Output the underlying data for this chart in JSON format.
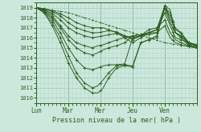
{
  "xlabel": "Pression niveau de la mer( hPa )",
  "bg_color": "#cce8dc",
  "grid_major_color": "#a8cfc0",
  "grid_minor_color": "#b8d8cc",
  "line_color": "#2d6020",
  "ylim": [
    1009.5,
    1019.5
  ],
  "yticks": [
    1010,
    1011,
    1012,
    1013,
    1014,
    1015,
    1016,
    1017,
    1018,
    1019
  ],
  "day_labels": [
    "Lun",
    "Mar",
    "Mer",
    "Jeu",
    "Ven"
  ],
  "day_positions": [
    0,
    24,
    48,
    72,
    96
  ],
  "total_hours": 120,
  "lines": [
    [
      [
        0,
        1019.0
      ],
      [
        6,
        1018.5
      ],
      [
        12,
        1017.2
      ],
      [
        18,
        1015.5
      ],
      [
        24,
        1013.5
      ],
      [
        30,
        1012.0
      ],
      [
        36,
        1011.0
      ],
      [
        42,
        1010.5
      ],
      [
        46,
        1010.5
      ],
      [
        50,
        1011.0
      ],
      [
        54,
        1012.0
      ],
      [
        60,
        1013.0
      ],
      [
        66,
        1013.2
      ],
      [
        72,
        1013.1
      ],
      [
        78,
        1015.5
      ],
      [
        84,
        1015.8
      ],
      [
        90,
        1016.0
      ],
      [
        96,
        1019.2
      ],
      [
        100,
        1018.8
      ],
      [
        104,
        1016.5
      ],
      [
        108,
        1016.0
      ],
      [
        114,
        1015.2
      ],
      [
        120,
        1015.0
      ]
    ],
    [
      [
        0,
        1019.0
      ],
      [
        6,
        1018.5
      ],
      [
        12,
        1017.5
      ],
      [
        18,
        1016.0
      ],
      [
        24,
        1014.2
      ],
      [
        30,
        1012.5
      ],
      [
        36,
        1011.5
      ],
      [
        42,
        1011.0
      ],
      [
        46,
        1011.2
      ],
      [
        50,
        1011.8
      ],
      [
        54,
        1012.5
      ],
      [
        60,
        1013.2
      ],
      [
        66,
        1013.3
      ],
      [
        72,
        1013.2
      ],
      [
        78,
        1015.5
      ],
      [
        84,
        1015.8
      ],
      [
        90,
        1016.2
      ],
      [
        96,
        1019.0
      ],
      [
        100,
        1018.5
      ],
      [
        104,
        1016.5
      ],
      [
        108,
        1016.2
      ],
      [
        114,
        1015.3
      ],
      [
        120,
        1015.1
      ]
    ],
    [
      [
        0,
        1019.0
      ],
      [
        6,
        1018.6
      ],
      [
        12,
        1017.8
      ],
      [
        18,
        1016.5
      ],
      [
        24,
        1015.0
      ],
      [
        30,
        1013.8
      ],
      [
        36,
        1013.0
      ],
      [
        42,
        1012.8
      ],
      [
        46,
        1013.0
      ],
      [
        50,
        1013.2
      ],
      [
        54,
        1013.3
      ],
      [
        60,
        1013.3
      ],
      [
        66,
        1013.4
      ],
      [
        72,
        1016.0
      ],
      [
        78,
        1016.2
      ],
      [
        84,
        1016.3
      ],
      [
        90,
        1016.5
      ],
      [
        96,
        1019.0
      ],
      [
        100,
        1018.2
      ],
      [
        104,
        1016.8
      ],
      [
        108,
        1016.5
      ],
      [
        114,
        1015.4
      ],
      [
        120,
        1015.2
      ]
    ],
    [
      [
        0,
        1019.0
      ],
      [
        6,
        1018.7
      ],
      [
        12,
        1018.0
      ],
      [
        18,
        1017.0
      ],
      [
        24,
        1015.8
      ],
      [
        30,
        1015.0
      ],
      [
        36,
        1014.5
      ],
      [
        42,
        1014.3
      ],
      [
        46,
        1014.5
      ],
      [
        50,
        1014.8
      ],
      [
        54,
        1015.0
      ],
      [
        60,
        1015.2
      ],
      [
        66,
        1015.5
      ],
      [
        72,
        1016.2
      ],
      [
        78,
        1016.3
      ],
      [
        84,
        1016.5
      ],
      [
        90,
        1016.8
      ],
      [
        96,
        1019.2
      ],
      [
        100,
        1017.8
      ],
      [
        104,
        1017.0
      ],
      [
        108,
        1016.5
      ],
      [
        114,
        1015.5
      ],
      [
        120,
        1015.2
      ]
    ],
    [
      [
        0,
        1019.0
      ],
      [
        6,
        1018.8
      ],
      [
        12,
        1018.2
      ],
      [
        18,
        1017.2
      ],
      [
        24,
        1016.2
      ],
      [
        30,
        1015.5
      ],
      [
        36,
        1015.2
      ],
      [
        42,
        1015.0
      ],
      [
        46,
        1015.2
      ],
      [
        50,
        1015.3
      ],
      [
        54,
        1015.5
      ],
      [
        60,
        1015.8
      ],
      [
        66,
        1016.0
      ],
      [
        72,
        1016.2
      ],
      [
        78,
        1016.3
      ],
      [
        84,
        1016.5
      ],
      [
        90,
        1016.8
      ],
      [
        96,
        1019.0
      ],
      [
        100,
        1017.5
      ],
      [
        104,
        1016.5
      ],
      [
        108,
        1016.2
      ],
      [
        114,
        1015.5
      ],
      [
        120,
        1015.3
      ]
    ],
    [
      [
        0,
        1019.0
      ],
      [
        6,
        1018.8
      ],
      [
        12,
        1018.4
      ],
      [
        18,
        1017.8
      ],
      [
        24,
        1017.0
      ],
      [
        30,
        1016.5
      ],
      [
        36,
        1016.2
      ],
      [
        42,
        1016.0
      ],
      [
        46,
        1016.1
      ],
      [
        50,
        1016.2
      ],
      [
        54,
        1016.3
      ],
      [
        60,
        1016.4
      ],
      [
        66,
        1016.2
      ],
      [
        72,
        1016.0
      ],
      [
        78,
        1016.2
      ],
      [
        84,
        1016.5
      ],
      [
        90,
        1016.8
      ],
      [
        96,
        1018.5
      ],
      [
        100,
        1017.2
      ],
      [
        104,
        1016.0
      ],
      [
        108,
        1015.8
      ],
      [
        114,
        1015.5
      ],
      [
        120,
        1015.3
      ]
    ],
    [
      [
        0,
        1019.0
      ],
      [
        6,
        1018.9
      ],
      [
        12,
        1018.6
      ],
      [
        18,
        1018.2
      ],
      [
        24,
        1017.5
      ],
      [
        30,
        1017.0
      ],
      [
        36,
        1016.7
      ],
      [
        42,
        1016.5
      ],
      [
        46,
        1016.5
      ],
      [
        50,
        1016.6
      ],
      [
        54,
        1016.7
      ],
      [
        60,
        1016.6
      ],
      [
        66,
        1016.2
      ],
      [
        72,
        1015.8
      ],
      [
        78,
        1016.2
      ],
      [
        84,
        1016.8
      ],
      [
        90,
        1017.0
      ],
      [
        96,
        1017.8
      ],
      [
        100,
        1016.5
      ],
      [
        104,
        1015.8
      ],
      [
        108,
        1015.5
      ],
      [
        114,
        1015.2
      ],
      [
        120,
        1015.0
      ]
    ],
    [
      [
        0,
        1019.0
      ],
      [
        6,
        1018.9
      ],
      [
        12,
        1018.7
      ],
      [
        18,
        1018.4
      ],
      [
        24,
        1018.0
      ],
      [
        30,
        1017.5
      ],
      [
        36,
        1017.2
      ],
      [
        42,
        1017.0
      ],
      [
        46,
        1017.0
      ],
      [
        50,
        1017.0
      ],
      [
        54,
        1016.8
      ],
      [
        60,
        1016.5
      ],
      [
        66,
        1016.0
      ],
      [
        72,
        1015.5
      ],
      [
        78,
        1016.0
      ],
      [
        84,
        1016.5
      ],
      [
        90,
        1016.5
      ],
      [
        96,
        1017.2
      ],
      [
        100,
        1016.0
      ],
      [
        104,
        1015.5
      ],
      [
        108,
        1015.3
      ],
      [
        114,
        1015.1
      ],
      [
        120,
        1015.0
      ]
    ],
    [
      [
        0,
        1019.0
      ],
      [
        24,
        1018.5
      ],
      [
        48,
        1017.5
      ],
      [
        72,
        1016.5
      ],
      [
        96,
        1015.5
      ],
      [
        120,
        1015.0
      ]
    ]
  ]
}
